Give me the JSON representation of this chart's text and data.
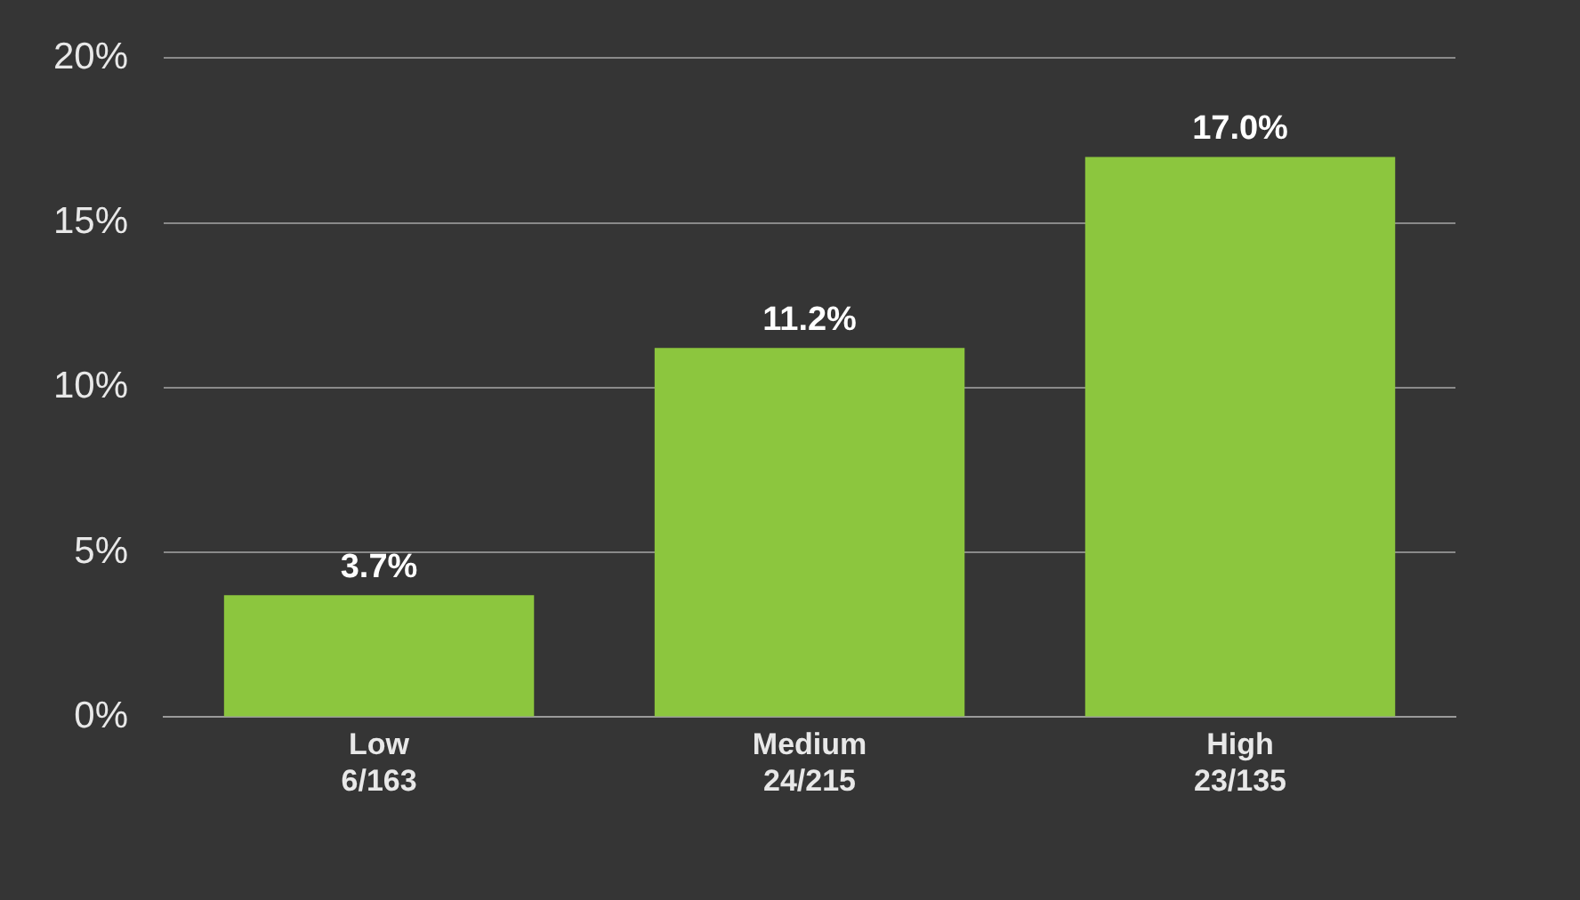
{
  "chart_data": {
    "type": "bar",
    "categories": [
      "Low\n6/163",
      "Medium\n24/215",
      "High\n23/135"
    ],
    "values": [
      3.7,
      11.2,
      17.0
    ],
    "color": "#8cc63e",
    "value_labels": [
      "3.7%",
      "11.2%",
      "17.0%"
    ],
    "ylim": [
      0,
      20
    ],
    "yticks": [
      {
        "value": 0,
        "label": "0%"
      },
      {
        "value": 5,
        "label": "5%"
      },
      {
        "value": 10,
        "label": "10%"
      },
      {
        "value": 15,
        "label": "15%"
      },
      {
        "value": 20,
        "label": "20%"
      }
    ],
    "grid": "y"
  }
}
